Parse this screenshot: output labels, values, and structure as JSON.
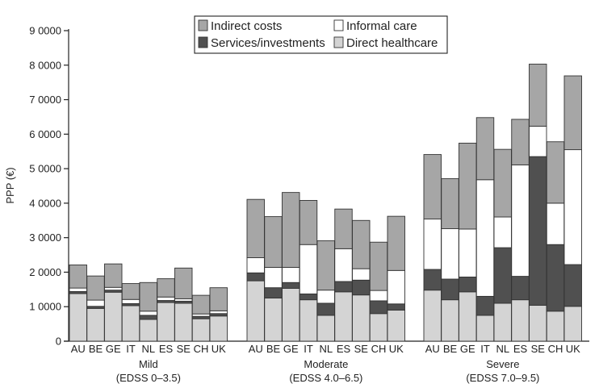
{
  "chart_data": {
    "type": "bar",
    "stacked": true,
    "ylabel": "PPP (€)",
    "ylim": [
      0,
      90000
    ],
    "y_ticks": [
      0,
      10000,
      20000,
      30000,
      40000,
      50000,
      60000,
      70000,
      80000,
      90000
    ],
    "y_tick_labels": [
      "0",
      "1 0000",
      "2 0000",
      "3 0000",
      "4 0000",
      "5 0000",
      "6 0000",
      "7 0000",
      "8 0000",
      "9 0000"
    ],
    "legend_position": "top-center",
    "legend": [
      {
        "name": "Indirect costs",
        "color": "#a6a6a6"
      },
      {
        "name": "Informal care",
        "color": "#ffffff"
      },
      {
        "name": "Services/investments",
        "color": "#505050"
      },
      {
        "name": "Direct healthcare",
        "color": "#d4d4d4"
      }
    ],
    "stack_order": [
      "Direct healthcare",
      "Services/investments",
      "Informal care",
      "Indirect costs"
    ],
    "countries": [
      "AU",
      "BE",
      "GE",
      "IT",
      "NL",
      "ES",
      "SE",
      "CH",
      "UK"
    ],
    "groups": [
      {
        "name": "Mild",
        "subtitle": "(EDSS 0–3.5)",
        "series": {
          "Direct healthcare": [
            13800,
            9500,
            14200,
            10300,
            6300,
            11200,
            11000,
            6500,
            7300
          ],
          "Services/investments": [
            600,
            600,
            600,
            600,
            1200,
            600,
            600,
            700,
            700
          ],
          "Informal care": [
            1000,
            1800,
            800,
            1200,
            1200,
            1000,
            700,
            700,
            800
          ],
          "Indirect costs": [
            6700,
            7000,
            6800,
            4600,
            8300,
            5300,
            8900,
            5400,
            6700
          ]
        }
      },
      {
        "name": "Moderate",
        "subtitle": "(EDSS 4.0–6.5)",
        "series": {
          "Direct healthcare": [
            17500,
            12500,
            15300,
            12000,
            7500,
            14300,
            13400,
            8000,
            9000
          ],
          "Services/investments": [
            2300,
            3000,
            1700,
            1700,
            3500,
            3000,
            4300,
            3700,
            1800
          ],
          "Informal care": [
            4400,
            5900,
            4400,
            14300,
            3800,
            9500,
            3300,
            3000,
            9700
          ],
          "Indirect costs": [
            16900,
            14700,
            21700,
            12800,
            14300,
            11500,
            14000,
            14000,
            15700
          ]
        }
      },
      {
        "name": "Severe",
        "subtitle": "(EDSS 7.0–9.5)",
        "series": {
          "Direct healthcare": [
            14800,
            12000,
            14300,
            7500,
            11000,
            12000,
            10400,
            8700,
            10100
          ],
          "Services/investments": [
            6000,
            6000,
            4300,
            5500,
            16100,
            6800,
            43100,
            19300,
            12100
          ],
          "Informal care": [
            14600,
            14600,
            13900,
            33800,
            8900,
            32300,
            8800,
            12000,
            33300
          ],
          "Indirect costs": [
            18700,
            14500,
            24900,
            18000,
            19600,
            13200,
            18000,
            17800,
            21400
          ]
        }
      }
    ]
  }
}
